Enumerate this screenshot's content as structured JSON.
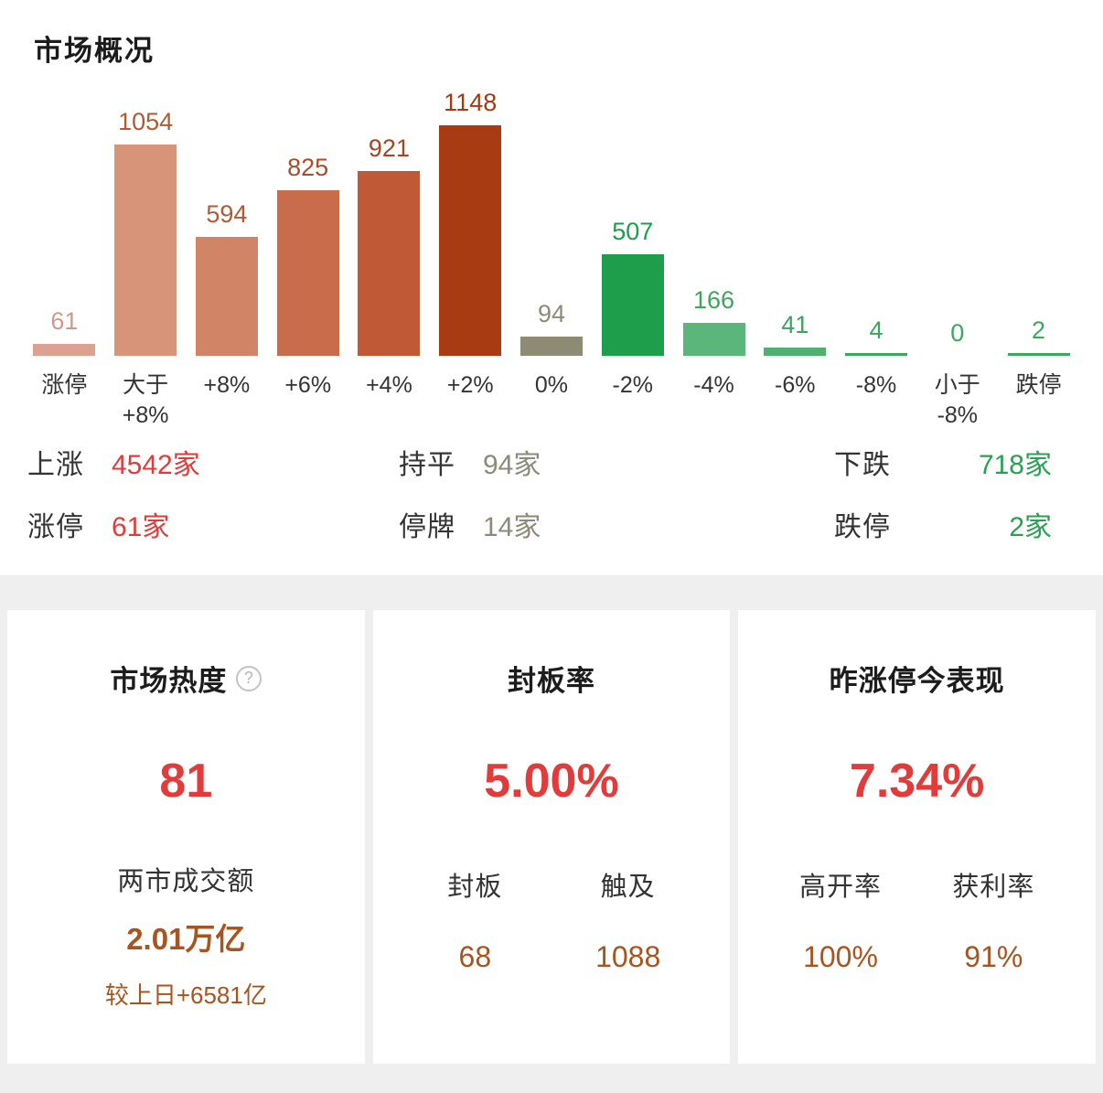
{
  "header": {
    "title": "市场概况"
  },
  "chart_data": {
    "type": "bar",
    "title": "市场概况",
    "categories": [
      "涨停",
      "大于\n+8%",
      "+8%",
      "+6%",
      "+4%",
      "+2%",
      "0%",
      "-2%",
      "-4%",
      "-6%",
      "-8%",
      "小于\n-8%",
      "跌停"
    ],
    "values": [
      61,
      1054,
      594,
      825,
      921,
      1148,
      94,
      507,
      166,
      41,
      4,
      0,
      2
    ],
    "bar_colors": [
      "#dca191",
      "#d89478",
      "#d28467",
      "#c96c4c",
      "#c05a36",
      "#a93b13",
      "#8d8b74",
      "#1e9e4a",
      "#5bb67b",
      "#4fb06f",
      "#3fa860",
      "#3fa860",
      "#3fa860"
    ],
    "value_label_colors": [
      "#cf9a87",
      "#b15a33",
      "#b15a33",
      "#ab4c28",
      "#a8451f",
      "#a23a12",
      "#8d8b74",
      "#1e9e4a",
      "#3ea55f",
      "#3ea55f",
      "#3ea55f",
      "#3ea55f",
      "#3ea55f"
    ],
    "ylim": [
      0,
      1148
    ],
    "grid": false,
    "legend": false
  },
  "stats": {
    "up": {
      "label": "上涨",
      "value": "4542家"
    },
    "limit_up": {
      "label": "涨停",
      "value": "61家"
    },
    "flat": {
      "label": "持平",
      "value": "94家"
    },
    "suspended": {
      "label": "停牌",
      "value": "14家"
    },
    "down": {
      "label": "下跌",
      "value": "718家"
    },
    "limit_down": {
      "label": "跌停",
      "value": "2家"
    }
  },
  "cards": {
    "market_heat": {
      "title": "市场热度",
      "help_icon": "?",
      "value": "81",
      "turnover_label": "两市成交额",
      "turnover_value": "2.01万亿",
      "vs_prev": "较上日+6581亿"
    },
    "seal_rate": {
      "title": "封板率",
      "value": "5.00%",
      "col1_label": "封板",
      "col1_value": "68",
      "col2_label": "触及",
      "col2_value": "1088"
    },
    "yesterday_limit_up": {
      "title": "昨涨停今表现",
      "value": "7.34%",
      "col1_label": "高开率",
      "col1_value": "100%",
      "col2_label": "获利率",
      "col2_value": "91%"
    }
  },
  "colors": {
    "up_red": "#e23b3b",
    "down_green": "#28a152",
    "flat_gray": "#8c8a78",
    "accent_brown": "#a8541f"
  }
}
